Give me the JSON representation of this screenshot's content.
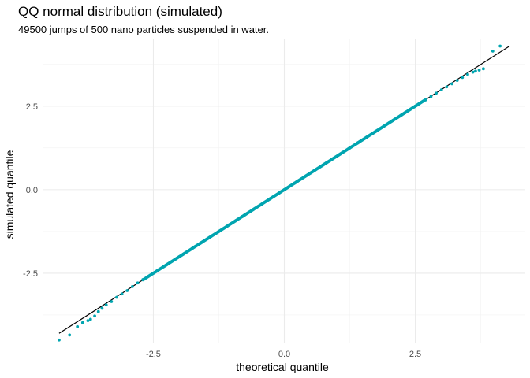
{
  "chart_data": {
    "type": "scatter",
    "title": "QQ normal distribution (simulated)",
    "subtitle": "49500 jumps of 500 nano particles suspended in water.",
    "xlabel": "theoretical quantile",
    "ylabel": "simulated quantile",
    "xlim": [
      -4.6,
      4.6
    ],
    "ylim": [
      -4.6,
      4.5
    ],
    "x_ticks": [
      -2.5,
      0.0,
      2.5
    ],
    "x_tick_labels": [
      "-2.5",
      "0.0",
      "2.5"
    ],
    "y_ticks": [
      -2.5,
      0.0,
      2.5
    ],
    "y_tick_labels": [
      "-2.5",
      "0.0",
      "2.5"
    ],
    "grid": true,
    "legend": "none",
    "reference_line": {
      "x": [
        -4.3,
        4.3
      ],
      "y": [
        -4.3,
        4.3
      ],
      "color": "#000000"
    },
    "point_color": "#00A5B0",
    "series": [
      {
        "x": [
          -4.3,
          -4.1,
          -3.95,
          -3.85,
          -3.75,
          -3.7,
          -3.62,
          -3.55,
          -3.48,
          -3.4,
          -3.3,
          -3.2,
          -3.1,
          -3.0,
          -2.9,
          -2.8,
          -2.7,
          -2.5,
          -2.3,
          -2.0,
          -1.7,
          -1.4,
          -1.1,
          -0.8,
          -0.5,
          -0.2,
          0.0,
          0.2,
          0.5,
          0.8,
          1.1,
          1.4,
          1.7,
          2.0,
          2.3,
          2.5,
          2.7,
          2.8,
          2.9,
          3.0,
          3.1,
          3.2,
          3.3,
          3.4,
          3.5,
          3.6,
          3.65,
          3.72,
          3.8,
          3.98,
          4.12
        ],
        "y": [
          -4.5,
          -4.35,
          -4.1,
          -3.98,
          -3.92,
          -3.88,
          -3.78,
          -3.65,
          -3.55,
          -3.45,
          -3.35,
          -3.22,
          -3.12,
          -3.02,
          -2.9,
          -2.79,
          -2.69,
          -2.5,
          -2.3,
          -2.0,
          -1.7,
          -1.4,
          -1.1,
          -0.8,
          -0.5,
          -0.2,
          0.0,
          0.2,
          0.5,
          0.8,
          1.1,
          1.4,
          1.7,
          2.0,
          2.3,
          2.5,
          2.69,
          2.79,
          2.89,
          2.99,
          3.08,
          3.17,
          3.27,
          3.36,
          3.45,
          3.52,
          3.55,
          3.58,
          3.62,
          4.15,
          4.3
        ]
      }
    ]
  }
}
